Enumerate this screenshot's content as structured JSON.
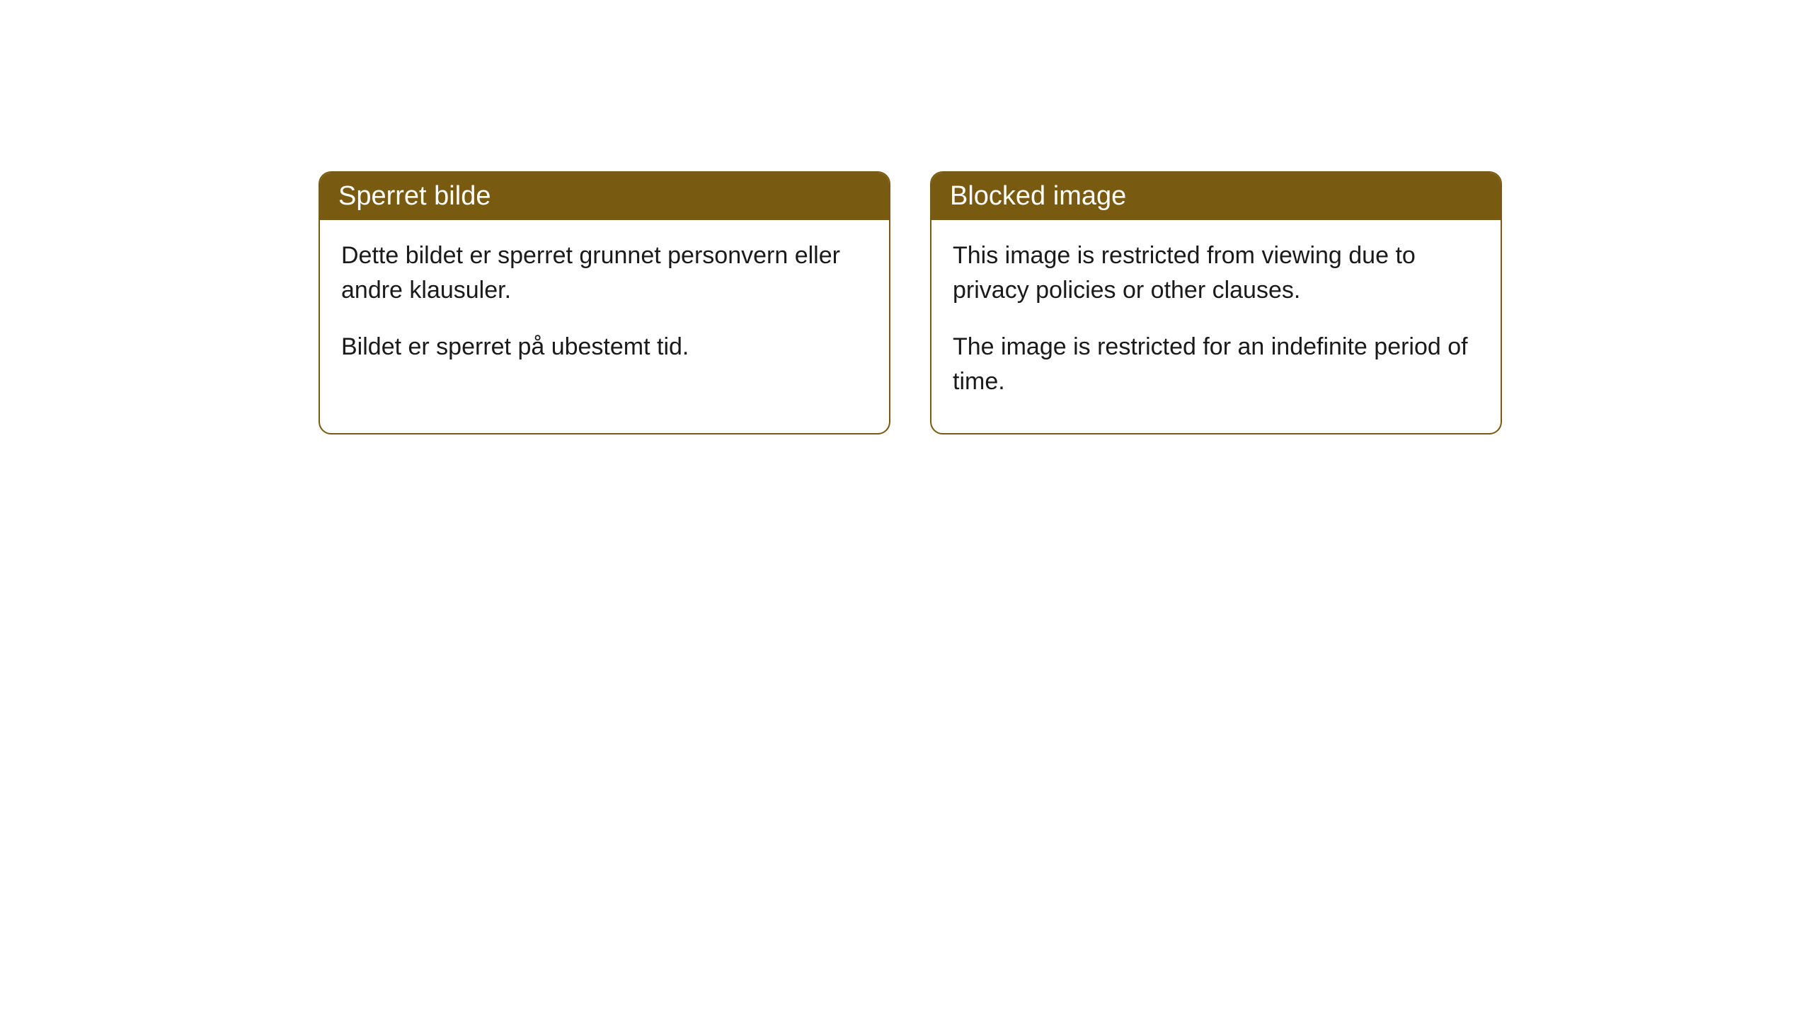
{
  "cards": [
    {
      "title": "Sperret bilde",
      "paragraph1": "Dette bildet er sperret grunnet personvern eller andre klausuler.",
      "paragraph2": "Bildet er sperret på ubestemt tid."
    },
    {
      "title": "Blocked image",
      "paragraph1": "This image is restricted from viewing due to privacy policies or other clauses.",
      "paragraph2": "The image is restricted for an indefinite period of time."
    }
  ],
  "styling": {
    "header_background": "#785a10",
    "header_text_color": "#ffffff",
    "border_color": "#785a10",
    "body_background": "#ffffff",
    "body_text_color": "#1a1a1a",
    "border_radius": 18,
    "header_fontsize": 38,
    "body_fontsize": 34
  }
}
